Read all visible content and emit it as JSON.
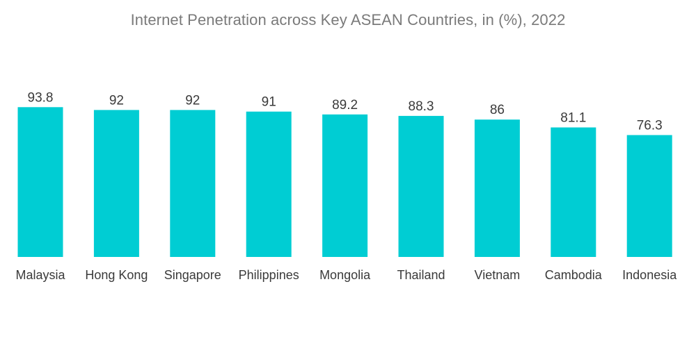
{
  "chart_data": {
    "type": "bar",
    "title": "Internet Penetration across Key ASEAN Countries, in (%), 2022",
    "xlabel": "",
    "ylabel": "",
    "categories": [
      "Malaysia",
      "Hong Kong",
      "Singapore",
      "Philippines",
      "Mongolia",
      "Thailand",
      "Vietnam",
      "Cambodia",
      "Indonesia"
    ],
    "values": [
      93.8,
      92,
      92,
      91,
      89.2,
      88.3,
      86,
      81.1,
      76.3
    ],
    "value_labels": [
      "93.8",
      "92",
      "92",
      "91",
      "89.2",
      "88.3",
      "86",
      "81.1",
      "76.3"
    ],
    "ylim": [
      0,
      93.8
    ],
    "grid": false,
    "legend": "none",
    "bar_color": "#00cdd3",
    "text_color": "#3a3a3a",
    "title_color": "#7a7a7a"
  }
}
